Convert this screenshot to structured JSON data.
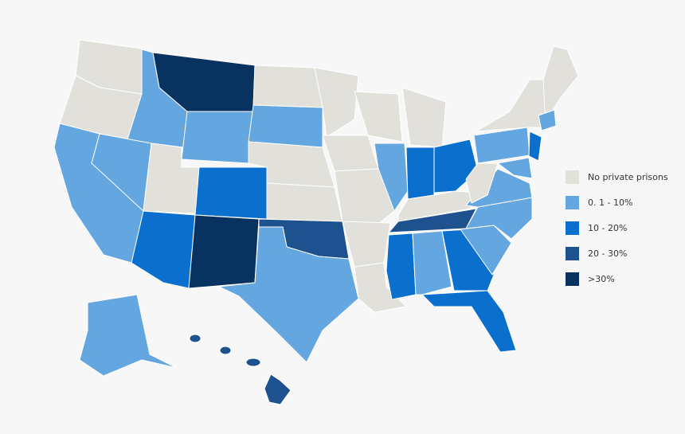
{
  "legend": {
    "items": [
      {
        "label": "No private prisons",
        "color": "#e2e0db"
      },
      {
        "label": "0. 1 - 10%",
        "color": "#64a6e0"
      },
      {
        "label": "10 - 20%",
        "color": "#0a6fcd"
      },
      {
        "label": "20 - 30%",
        "color": "#1d528f"
      },
      {
        "label": ">30%",
        "color": "#08325f"
      }
    ]
  }
}
